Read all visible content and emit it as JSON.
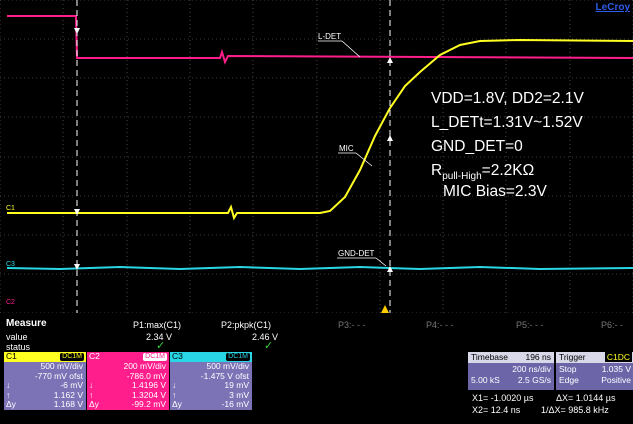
{
  "brand": "LeCroy",
  "colors": {
    "c1": "#ffff22",
    "c2": "#ff1e8c",
    "c3": "#28d6e6",
    "grid": "#7a7a7a",
    "panel_blue": "#7b73b6",
    "check": "#38d13e"
  },
  "traces": {
    "l_det_label": "L-DET",
    "mic_label": "MIC",
    "gnd_det_label": "GND-DET",
    "c1_marker": "C1",
    "c2_marker": "C2",
    "c3_marker": "C3"
  },
  "annotation": {
    "line1": "VDD=1.8V, DD2=2.1V",
    "line2": "L_DETt=1.31V~1.52V",
    "line3": "GND_DET=0",
    "line4_base": "R",
    "line4_sub": "pull-High",
    "line4_rest": "=2.2KΩ",
    "line5": "MIC Bias=2.3V"
  },
  "measure": {
    "title": "Measure",
    "row_value": "value",
    "row_status": "status",
    "params": [
      {
        "name": "P1:max(C1)",
        "value": "2.34 V",
        "status": "✓"
      },
      {
        "name": "P2:pkpk(C1)",
        "value": "2.46 V",
        "status": "✓"
      },
      {
        "name": "P3:- - -"
      },
      {
        "name": "P4:- - -"
      },
      {
        "name": "P5:- - -"
      },
      {
        "name": "P6:- -"
      }
    ]
  },
  "channels": [
    {
      "name": "C1",
      "badge": "DC1M",
      "vdiv": "500 mV/div",
      "offset": "-770 mV ofst",
      "rows": [
        {
          "k": "↓",
          "v": "-6 mV"
        },
        {
          "k": "↑",
          "v": "1.162 V"
        },
        {
          "k": "Δy",
          "v": "1.168 V"
        }
      ]
    },
    {
      "name": "C2",
      "badge": "DC1M",
      "vdiv": "200 mV/div",
      "offset": "-786.0 mV",
      "rows": [
        {
          "k": "↓",
          "v": "1.4196 V"
        },
        {
          "k": "↑",
          "v": "1.3204 V"
        },
        {
          "k": "Δy",
          "v": "-99.2 mV"
        }
      ]
    },
    {
      "name": "C3",
      "badge": "DC1M",
      "vdiv": "500 mV/div",
      "offset": "-1.475 V ofst",
      "rows": [
        {
          "k": "↓",
          "v": "19 mV"
        },
        {
          "k": "↑",
          "v": "3 mV"
        },
        {
          "k": "Δy",
          "v": "-16 mV"
        }
      ]
    }
  ],
  "timebase": {
    "label": "Timebase",
    "delay": "196 ns",
    "tdiv": "200 ns/div",
    "samples": "5.00 kS",
    "rate": "2.5 GS/s"
  },
  "trigger": {
    "label": "Trigger",
    "channel": "C1DC",
    "mode": "Stop",
    "level": "1.035 V",
    "type": "Edge",
    "slope": "Positive"
  },
  "cursors": {
    "x1": "X1= -1.0020 µs",
    "x2": "X2= 12.4 ns",
    "dx": "ΔX= 1.0144 µs",
    "inv_dx": "1/ΔX= 985.8 kHz"
  }
}
